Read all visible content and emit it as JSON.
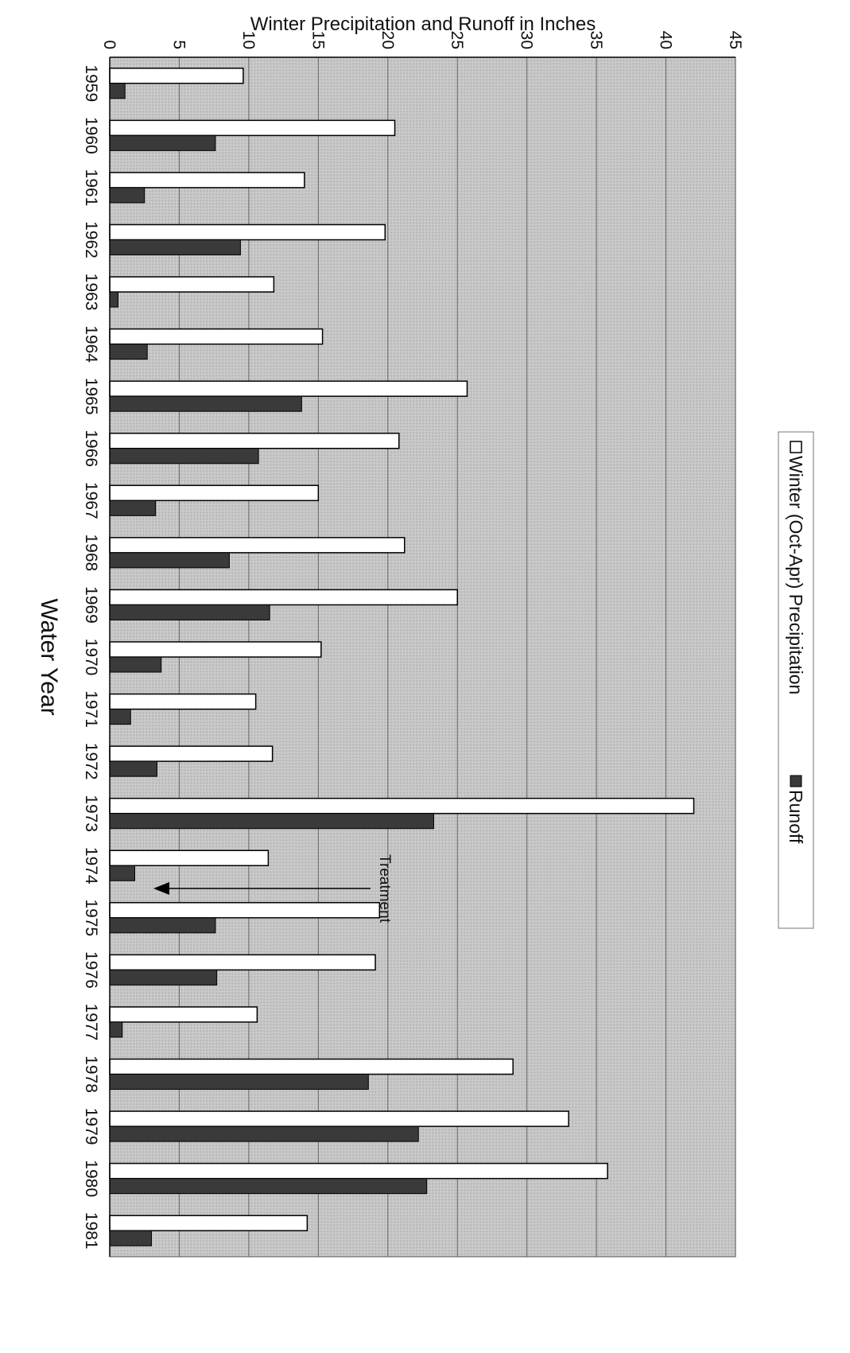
{
  "chart_data": {
    "type": "bar",
    "xlabel": "Water Year",
    "ylabel": "Winter Precipitation and Runoff in Inches",
    "ylim": [
      0,
      45
    ],
    "yticks": [
      0,
      5,
      10,
      15,
      20,
      25,
      30,
      35,
      40,
      45
    ],
    "grid": true,
    "legend_position": "top",
    "categories": [
      "1959",
      "1960",
      "1961",
      "1962",
      "1963",
      "1964",
      "1965",
      "1966",
      "1967",
      "1968",
      "1969",
      "1970",
      "1971",
      "1972",
      "1973",
      "1974",
      "1975",
      "1976",
      "1977",
      "1978",
      "1979",
      "1980",
      "1981"
    ],
    "series": [
      {
        "name": "Winter (Oct-Apr) Precipitation",
        "color": "#ffffff",
        "values": [
          9.6,
          20.5,
          14.0,
          19.8,
          11.8,
          15.3,
          25.7,
          20.8,
          15.0,
          21.2,
          25.0,
          15.2,
          10.5,
          11.7,
          42.0,
          11.4,
          19.4,
          19.1,
          10.6,
          29.0,
          33.0,
          35.8,
          14.2
        ]
      },
      {
        "name": "Runoff",
        "color": "#3a3a3a",
        "values": [
          1.1,
          7.6,
          2.5,
          9.4,
          0.6,
          2.7,
          13.8,
          10.7,
          3.3,
          8.6,
          11.5,
          3.7,
          1.5,
          3.4,
          23.3,
          1.8,
          7.6,
          7.7,
          0.9,
          18.6,
          22.2,
          22.8,
          3.0
        ]
      }
    ],
    "annotation": {
      "text": "Treatment",
      "at_year": "1974"
    }
  }
}
